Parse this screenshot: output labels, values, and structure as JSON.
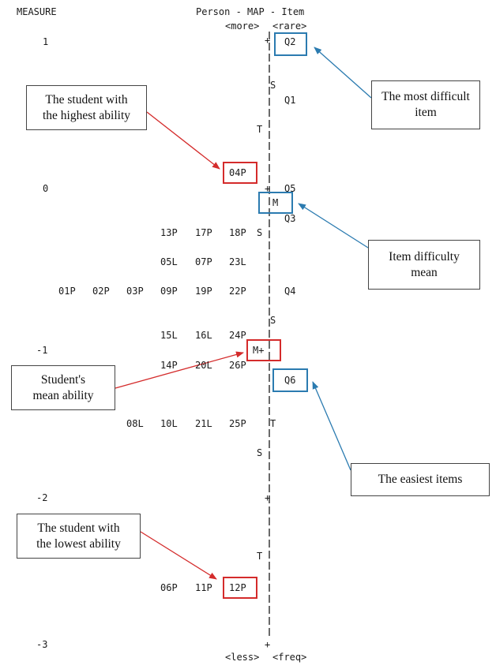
{
  "header": {
    "measure_label": "MEASURE",
    "title": "Person - MAP - Item",
    "top_left": "<more>",
    "top_right": "<rare>",
    "bottom_left": "<less>",
    "bottom_right": "<freq>"
  },
  "scale_ticks": [
    "1",
    "0",
    "-1",
    "-2",
    "-3"
  ],
  "axis_markers": {
    "plus_1": "+",
    "s_upper_item": "S",
    "t_upper_person": "T",
    "plus_0": "+",
    "m_item": "M",
    "s_person_upper": "S",
    "s_item_lower": "S",
    "m_person": "M+",
    "t_item_lower": "T",
    "s_person_lower": "S",
    "plus_minus2": "+",
    "t_person_lower": "T",
    "plus_minus3": "+"
  },
  "persons": {
    "row_04": "04P",
    "row_13": [
      "13P",
      "17P",
      "18P"
    ],
    "row_05": [
      "05L",
      "07P",
      "23L"
    ],
    "row_01": [
      "01P",
      "02P",
      "03P",
      "09P",
      "19P",
      "22P"
    ],
    "row_15": [
      "15L",
      "16L",
      "24P"
    ],
    "row_14": [
      "14P",
      "20L",
      "26P"
    ],
    "row_08": [
      "08L",
      "10L",
      "21L",
      "25P"
    ],
    "row_06": [
      "06P",
      "11P",
      "12P"
    ]
  },
  "items": {
    "q2": "Q2",
    "q1": "Q1",
    "q5": "Q5",
    "q3": "Q3",
    "q4": "Q4",
    "q6": "Q6"
  },
  "callouts": {
    "highest_ability": [
      "The student with",
      "the highest ability"
    ],
    "most_difficult": [
      "The most difficult",
      "item"
    ],
    "item_mean": [
      "Item difficulty",
      "mean"
    ],
    "student_mean": [
      "Student's",
      "mean ability"
    ],
    "easiest": [
      "The easiest items"
    ],
    "lowest_ability": [
      "The student with",
      "the lowest ability"
    ]
  },
  "colors": {
    "red": "#d42b2b",
    "blue": "#2b7bb0",
    "axis": "#1a1a1a"
  }
}
